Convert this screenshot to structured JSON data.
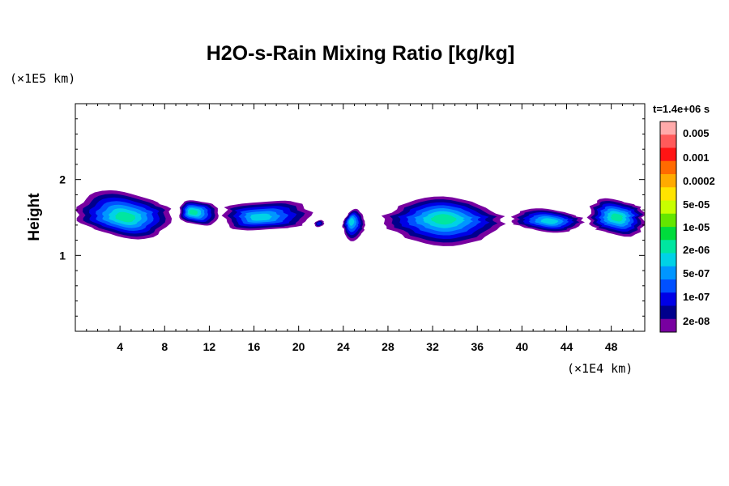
{
  "chart_data": {
    "type": "heatmap",
    "title": "H2O-s-Rain Mixing Ratio [kg/kg]",
    "xlabel": "",
    "ylabel": "Height",
    "x_unit_label": "(×1E4 km)",
    "y_unit_label": "(×1E5 km)",
    "xlim": [
      0,
      51
    ],
    "ylim": [
      0,
      3
    ],
    "x_ticks": [
      4,
      8,
      12,
      16,
      20,
      24,
      28,
      32,
      36,
      40,
      44,
      48
    ],
    "y_ticks": [
      1,
      2
    ],
    "colorbar": {
      "time_label": "t=1.4e+06 s",
      "labels": [
        "0.005",
        "0.001",
        "0.0002",
        "5e-05",
        "1e-05",
        "2e-06",
        "5e-07",
        "1e-07",
        "2e-08"
      ],
      "colors": [
        "#ffaaaa",
        "#ff5a5a",
        "#ff1414",
        "#ff6a00",
        "#ffaa00",
        "#ffe400",
        "#c8ff00",
        "#64e600",
        "#00dc3c",
        "#00e6a0",
        "#00d2e6",
        "#0096ff",
        "#0050ff",
        "#0000e6",
        "#00008c",
        "#7800a0"
      ]
    },
    "cloud_clusters": [
      {
        "x_center": 4.5,
        "y_center": 1.5,
        "x_extent": [
          0,
          8.7
        ],
        "y_extent": [
          1.2,
          1.87
        ],
        "peak_level": "1e-05"
      },
      {
        "x_center": 10.5,
        "y_center": 1.57,
        "x_extent": [
          9.2,
          12.9
        ],
        "y_extent": [
          1.35,
          1.77
        ],
        "peak_level": "1e-05"
      },
      {
        "x_center": 16.5,
        "y_center": 1.5,
        "x_extent": [
          13.2,
          21.0
        ],
        "y_extent": [
          1.27,
          1.78
        ],
        "peak_level": "2e-06"
      },
      {
        "x_center": 21.8,
        "y_center": 1.42,
        "x_extent": [
          21.4,
          22.3
        ],
        "y_extent": [
          1.37,
          1.47
        ],
        "peak_level": "2e-08"
      },
      {
        "x_center": 24.7,
        "y_center": 1.45,
        "x_extent": [
          23.9,
          26.0
        ],
        "y_extent": [
          1.2,
          1.6
        ],
        "peak_level": "2e-06"
      },
      {
        "x_center": 33.0,
        "y_center": 1.48,
        "x_extent": [
          27.5,
          38.4
        ],
        "y_extent": [
          1.15,
          1.75
        ],
        "peak_level": "1e-05"
      },
      {
        "x_center": 42.5,
        "y_center": 1.45,
        "x_extent": [
          38.9,
          45.6
        ],
        "y_extent": [
          1.3,
          1.62
        ],
        "peak_level": "2e-06"
      },
      {
        "x_center": 48.5,
        "y_center": 1.5,
        "x_extent": [
          46.0,
          51.0
        ],
        "y_extent": [
          1.2,
          1.8
        ],
        "peak_level": "1e-05"
      }
    ]
  }
}
